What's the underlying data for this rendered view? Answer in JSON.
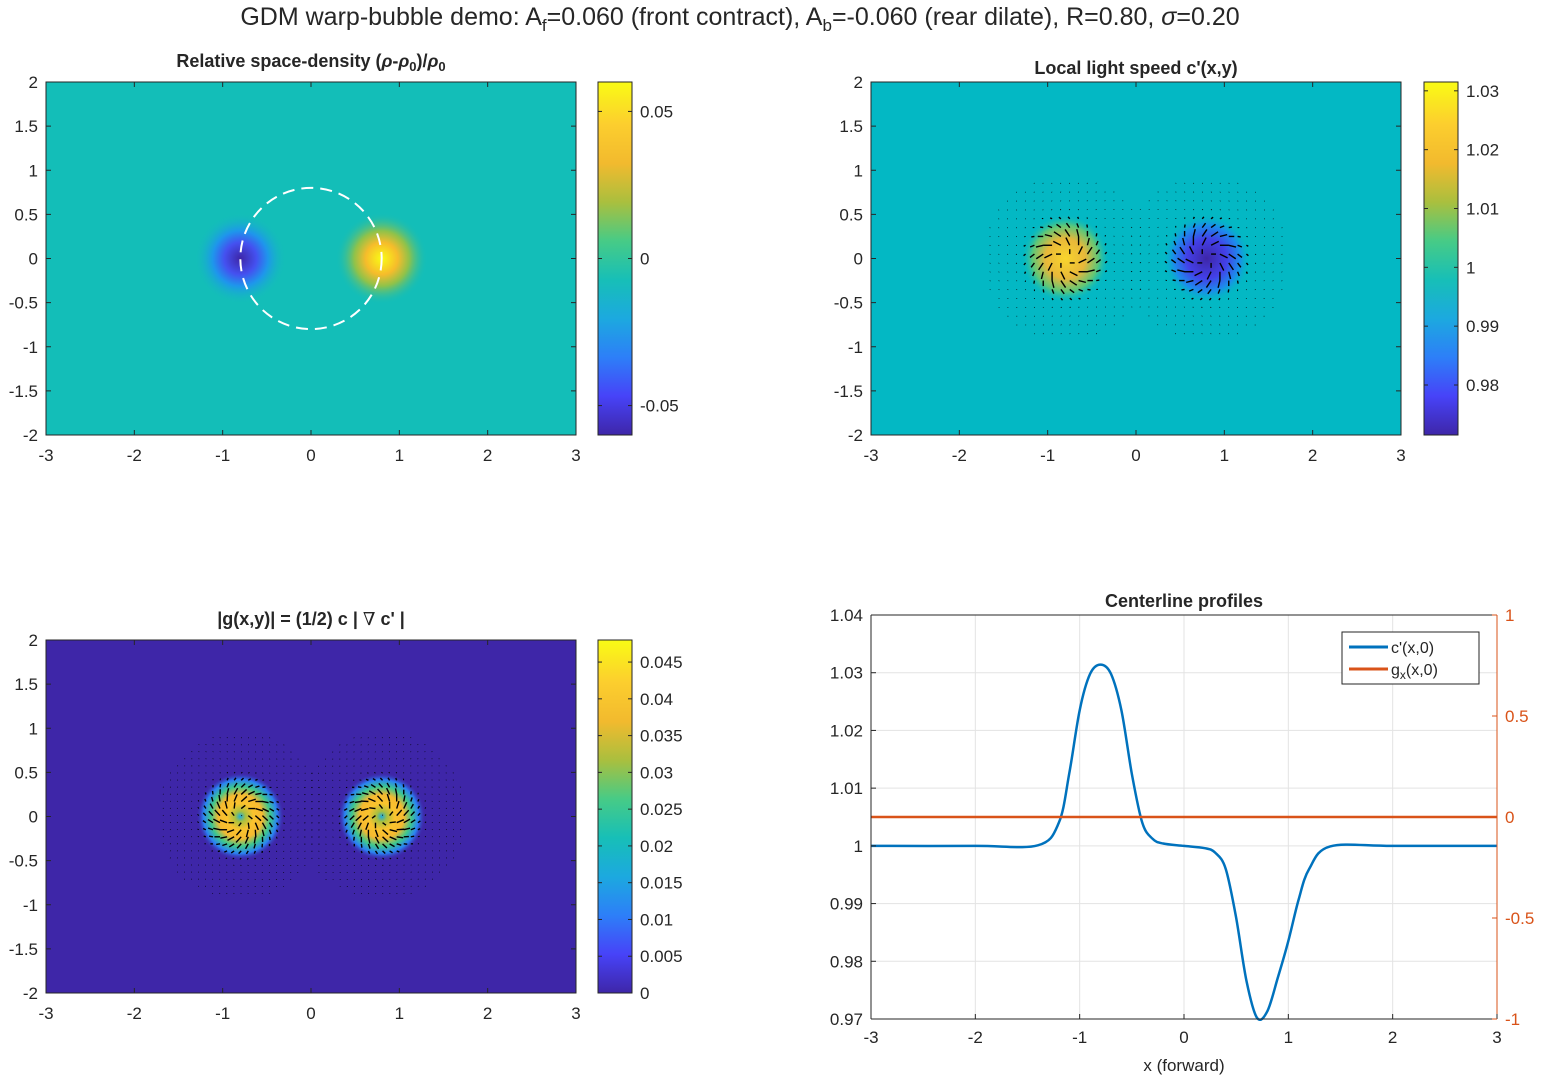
{
  "figure": {
    "suptitle": {
      "p1": "GDM  warp-bubble  demo:  A",
      "s1": "f",
      "p2": "=0.060  (front  contract),  A",
      "s2": "b",
      "p3": "=-0.060  (rear  dilate),  R=0.80,  ",
      "sigma": "σ",
      "p4": "=0.20"
    }
  },
  "chart_data": [
    {
      "type": "heatmap",
      "title": {
        "a": "Relative  space-density    (",
        "rho1": "ρ",
        "b": "-",
        "rho2": "ρ",
        "sub1": "0",
        "c": ")/",
        "rho3": "ρ",
        "sub2": "0"
      },
      "xlim": [
        -3,
        3
      ],
      "ylim": [
        -2,
        2
      ],
      "xticks": [
        "-3",
        "-2",
        "-1",
        "0",
        "1",
        "2",
        "3"
      ],
      "yticks": [
        "-2",
        "-1.5",
        "-1",
        "-0.5",
        "0",
        "0.5",
        "1",
        "1.5",
        "2"
      ],
      "field": {
        "background": 0,
        "peaks": [
          {
            "x": -0.8,
            "y": 0,
            "value": -0.06,
            "sigma": 0.2
          },
          {
            "x": 0.8,
            "y": 0,
            "value": 0.06,
            "sigma": 0.2
          }
        ]
      },
      "annotation": {
        "kind": "dashed-circle",
        "cx": 0,
        "cy": 0,
        "r": 0.8
      },
      "colorbar": {
        "clim": [
          -0.06,
          0.06
        ],
        "ticks": [
          -0.05,
          0,
          0.05
        ],
        "ticklabels": [
          "-0.05",
          "0",
          "0.05"
        ]
      }
    },
    {
      "type": "heatmap",
      "title": "Local light speed  c'(x,y)",
      "xlim": [
        -3,
        3
      ],
      "ylim": [
        -2,
        2
      ],
      "xticks": [
        "-3",
        "-2",
        "-1",
        "0",
        "1",
        "2",
        "3"
      ],
      "yticks": [
        "-2",
        "-1.5",
        "-1",
        "-0.5",
        "0",
        "0.5",
        "1",
        "1.5",
        "2"
      ],
      "field": {
        "background": 1,
        "peaks": [
          {
            "x": -0.8,
            "y": 0,
            "value": 1.03,
            "sigma": 0.2
          },
          {
            "x": 0.8,
            "y": 0,
            "value": 0.97,
            "sigma": 0.2
          }
        ]
      },
      "quiver": true,
      "colorbar": {
        "clim": [
          0.9715,
          1.0315
        ],
        "ticks": [
          0.98,
          0.99,
          1,
          1.01,
          1.02,
          1.03
        ],
        "ticklabels": [
          "0.98",
          "0.99",
          "1",
          "1.01",
          "1.02",
          "1.03"
        ]
      }
    },
    {
      "type": "heatmap",
      "title": {
        "a": "|g(x,y)|  =  (1/2)  c  |  ",
        "nabla": "∇",
        "b": "  c'  |"
      },
      "xlim": [
        -3,
        3
      ],
      "ylim": [
        -2,
        2
      ],
      "xticks": [
        "-3",
        "-2",
        "-1",
        "0",
        "1",
        "2",
        "3"
      ],
      "yticks": [
        "-2",
        "-1.5",
        "-1",
        "-0.5",
        "0",
        "0.5",
        "1",
        "1.5",
        "2"
      ],
      "field": {
        "background": 0,
        "peaks": [
          {
            "x": -0.8,
            "y": 0,
            "value": 0.047,
            "sigma": 0.2,
            "ring": true
          },
          {
            "x": 0.8,
            "y": 0,
            "value": 0.047,
            "sigma": 0.2,
            "ring": true
          }
        ]
      },
      "quiver": true,
      "colorbar": {
        "clim": [
          0,
          0.048
        ],
        "ticks": [
          0,
          0.005,
          0.01,
          0.015,
          0.02,
          0.025,
          0.03,
          0.035,
          0.04,
          0.045
        ],
        "ticklabels": [
          "0",
          "0.005",
          "0.01",
          "0.015",
          "0.02",
          "0.025",
          "0.03",
          "0.035",
          "0.04",
          "0.045"
        ]
      }
    },
    {
      "type": "line",
      "title": "Centerline profiles",
      "xlabel": "x (forward)",
      "xlim": [
        -3,
        3
      ],
      "ylim_left": [
        0.97,
        1.04
      ],
      "ylim_right": [
        -1,
        1
      ],
      "xticks": [
        "-3",
        "-2",
        "-1",
        "0",
        "1",
        "2",
        "3"
      ],
      "yticks_left": [
        "0.97",
        "0.98",
        "0.99",
        "1",
        "1.01",
        "1.02",
        "1.03",
        "1.04"
      ],
      "yticks_right": [
        "-1",
        "-0.5",
        "0",
        "0.5",
        "1"
      ],
      "grid": true,
      "legend_position": "top-right",
      "series": [
        {
          "name": "c'(x,0)",
          "axis": "left",
          "color": "#0072BD",
          "x": [
            -3,
            -2,
            -1.4,
            -1.2,
            -1.1,
            -1.0,
            -0.9,
            -0.8,
            -0.7,
            -0.6,
            -0.5,
            -0.4,
            -0.3,
            -0.2,
            0,
            0.2,
            0.3,
            0.4,
            0.5,
            0.6,
            0.7,
            0.8,
            0.9,
            1.0,
            1.1,
            1.2,
            1.4,
            2,
            3
          ],
          "values": [
            1.0,
            1.0,
            1.0001,
            1.004,
            1.0125,
            1.0235,
            1.0298,
            1.0314,
            1.0298,
            1.0235,
            1.0125,
            1.004,
            1.0012,
            1.0004,
            1.0,
            0.9996,
            0.9988,
            0.996,
            0.9875,
            0.9765,
            0.9702,
            0.9714,
            0.9772,
            0.9835,
            0.9908,
            0.996,
            0.9999,
            1.0,
            1.0
          ]
        },
        {
          "name": "gx(x,0)",
          "name_base": "g",
          "name_sub": "x",
          "name_rest": "(x,0)",
          "axis": "right",
          "color": "#D95319",
          "x": [
            -3,
            3
          ],
          "values": [
            0,
            0
          ]
        }
      ]
    }
  ],
  "colors": {
    "parula": [
      "#3E26A8",
      "#4743F8",
      "#2D7FF8",
      "#1CA9DF",
      "#17BFB7",
      "#47CB86",
      "#AABF3E",
      "#F2BA2E",
      "#FCCE2E",
      "#F9FB15"
    ]
  }
}
